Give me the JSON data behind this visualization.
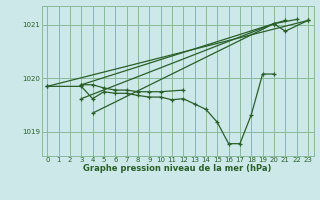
{
  "title": "Graphe pression niveau de la mer (hPa)",
  "background_color": "#cce8e8",
  "grid_color": "#88bb99",
  "line_color": "#2a5f2a",
  "xlim": [
    -0.5,
    23.5
  ],
  "ylim": [
    1018.55,
    1021.35
  ],
  "yticks": [
    1019,
    1020,
    1021
  ],
  "xticks": [
    0,
    1,
    2,
    3,
    4,
    5,
    6,
    7,
    8,
    9,
    10,
    11,
    12,
    13,
    14,
    15,
    16,
    17,
    18,
    19,
    20,
    21,
    22,
    23
  ],
  "series": [
    {
      "x": [
        0,
        3,
        4,
        5,
        6,
        7,
        8,
        9,
        10,
        11,
        12,
        13,
        14,
        15,
        16,
        17,
        18,
        19,
        20
      ],
      "y": [
        1019.85,
        1019.85,
        1019.62,
        1019.75,
        1019.72,
        1019.72,
        1019.68,
        1019.65,
        1019.65,
        1019.6,
        1019.62,
        1019.52,
        1019.42,
        1019.18,
        1018.78,
        1018.78,
        1019.32,
        1020.08,
        1020.08
      ]
    },
    {
      "x": [
        0,
        23
      ],
      "y": [
        1019.85,
        1021.08
      ]
    },
    {
      "x": [
        3,
        20,
        21,
        23
      ],
      "y": [
        1019.88,
        1021.02,
        1020.88,
        1021.08
      ]
    },
    {
      "x": [
        3,
        20,
        22
      ],
      "y": [
        1019.62,
        1021.02,
        1021.1
      ]
    },
    {
      "x": [
        4,
        20,
        21
      ],
      "y": [
        1019.35,
        1021.02,
        1021.08
      ]
    },
    {
      "x": [
        3,
        4,
        5,
        6,
        7,
        8,
        9,
        10,
        12
      ],
      "y": [
        1019.88,
        1019.88,
        1019.82,
        1019.78,
        1019.78,
        1019.75,
        1019.75,
        1019.75,
        1019.78
      ]
    }
  ]
}
